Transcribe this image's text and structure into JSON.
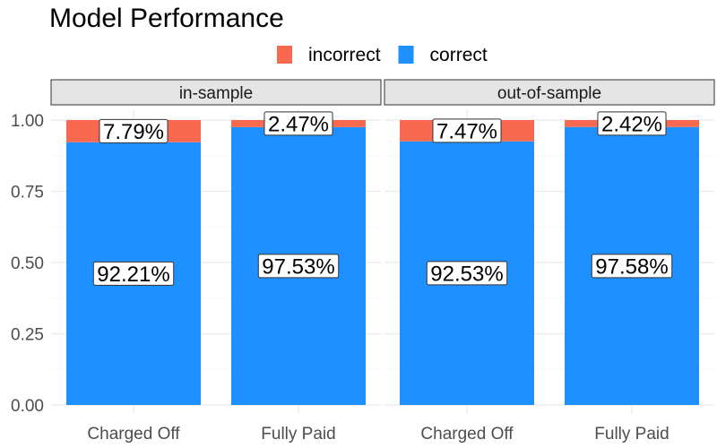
{
  "chart_data": {
    "type": "bar",
    "stacked": true,
    "title": "Model Performance",
    "xlabel": "",
    "ylabel": "",
    "ylim": [
      0,
      1
    ],
    "yticks": [
      "0.00",
      "0.25",
      "0.50",
      "0.75",
      "1.00"
    ],
    "grid": true,
    "legend_position": "top",
    "legend": [
      {
        "name": "incorrect",
        "color": "#f8694f"
      },
      {
        "name": "correct",
        "color": "#1e90ff"
      }
    ],
    "facets": [
      {
        "label": "in-sample",
        "categories": [
          "Charged Off",
          "Fully Paid"
        ],
        "series": [
          {
            "name": "correct",
            "values": [
              0.9221,
              0.9753
            ],
            "labels": [
              "92.21%",
              "97.53%"
            ]
          },
          {
            "name": "incorrect",
            "values": [
              0.0779,
              0.0247
            ],
            "labels": [
              "7.79%",
              "2.47%"
            ]
          }
        ]
      },
      {
        "label": "out-of-sample",
        "categories": [
          "Charged Off",
          "Fully Paid"
        ],
        "series": [
          {
            "name": "correct",
            "values": [
              0.9253,
              0.9758
            ],
            "labels": [
              "92.53%",
              "97.58%"
            ]
          },
          {
            "name": "incorrect",
            "values": [
              0.0747,
              0.0242
            ],
            "labels": [
              "7.47%",
              "2.42%"
            ]
          }
        ]
      }
    ]
  }
}
